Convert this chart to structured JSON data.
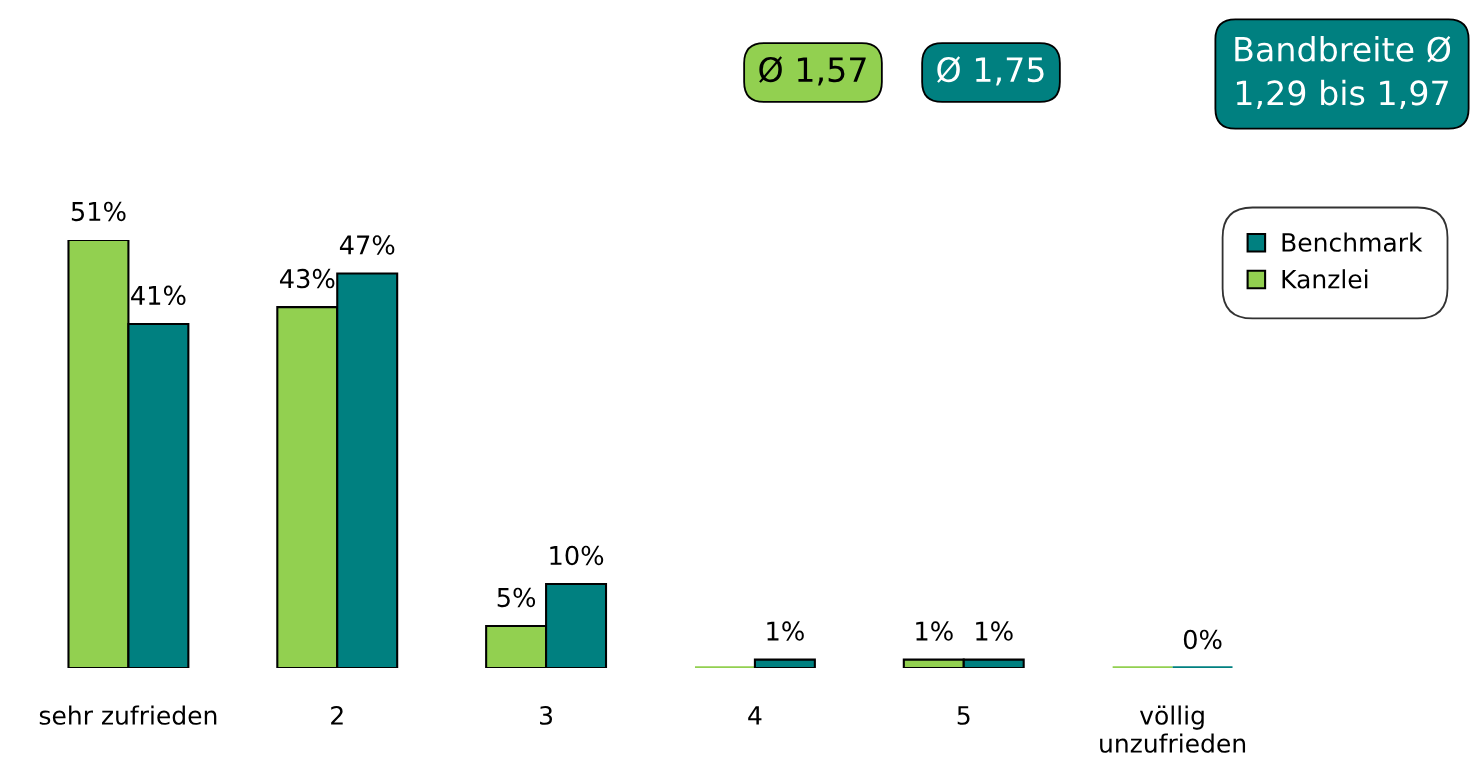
{
  "chart_data": {
    "type": "bar",
    "categories": [
      "sehr zufrieden",
      "2",
      "3",
      "4",
      "5",
      "völlig\nunzufrieden"
    ],
    "series": [
      {
        "name": "Kanzlei",
        "color": "#92d050",
        "values": [
          51,
          43,
          5,
          0,
          1,
          0
        ],
        "value_labels": [
          "51%",
          "43%",
          "5%",
          null,
          "1%",
          null
        ]
      },
      {
        "name": "Benchmark",
        "color": "#008080",
        "values": [
          41,
          47,
          10,
          1,
          1,
          0
        ],
        "value_labels": [
          "41%",
          "47%",
          "10%",
          "1%",
          "1%",
          "0%"
        ]
      }
    ],
    "legend": "top right",
    "tick_labels": "x",
    "annotations": [
      "Ø 1,57",
      "Ø 1,75",
      "Bandbreite Ø\n1,29 bis 1,97"
    ]
  }
}
